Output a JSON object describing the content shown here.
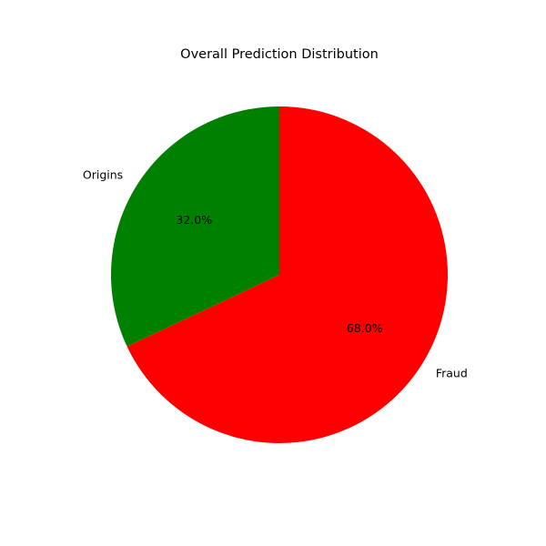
{
  "chart_data": {
    "type": "pie",
    "title": "Overall Prediction Distribution",
    "categories": [
      "Origins",
      "Fraud"
    ],
    "values": [
      32.0,
      68.0
    ],
    "percent_labels": [
      "32.0%",
      "68.0%"
    ],
    "colors": [
      "#008000",
      "#ff0000"
    ],
    "start_angle_deg": 90,
    "direction": "counterclockwise",
    "legend": "none"
  }
}
